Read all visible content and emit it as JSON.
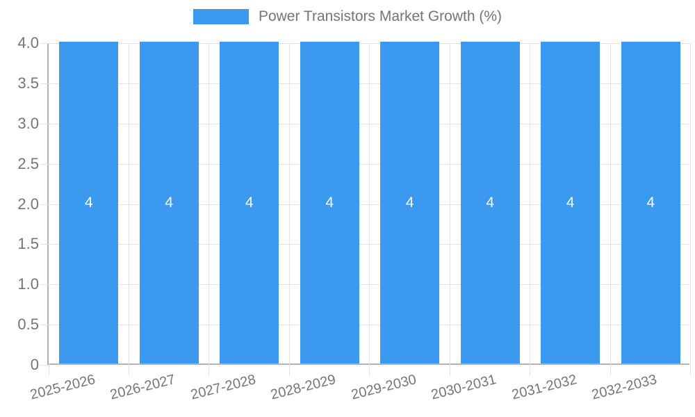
{
  "chart_data": {
    "type": "bar",
    "title": "Power Transistors Market Growth (%)",
    "categories": [
      "2025-2026",
      "2026-2027",
      "2027-2028",
      "2028-2029",
      "2029-2030",
      "2030-2031",
      "2031-2032",
      "2032-2033"
    ],
    "values": [
      4,
      4,
      4,
      4,
      4,
      4,
      4,
      4
    ],
    "bar_labels": [
      "4",
      "4",
      "4",
      "4",
      "4",
      "4",
      "4",
      "4"
    ],
    "ylim": [
      0,
      4
    ],
    "ytick_step": 0.5,
    "ytick_labels": [
      "0",
      "0.5",
      "1.0",
      "1.5",
      "2.0",
      "2.5",
      "3.0",
      "3.5",
      "4.0"
    ],
    "grid": true,
    "legend_position": "top",
    "xlabel": "",
    "ylabel": "",
    "colors": {
      "bar": "#3B99EF",
      "grid_line": "#e3e3e3",
      "axis_line": "#b3b3b3",
      "tick_text": "#757575",
      "legend_text": "#757575",
      "bar_label_text": "#ffffff"
    }
  }
}
